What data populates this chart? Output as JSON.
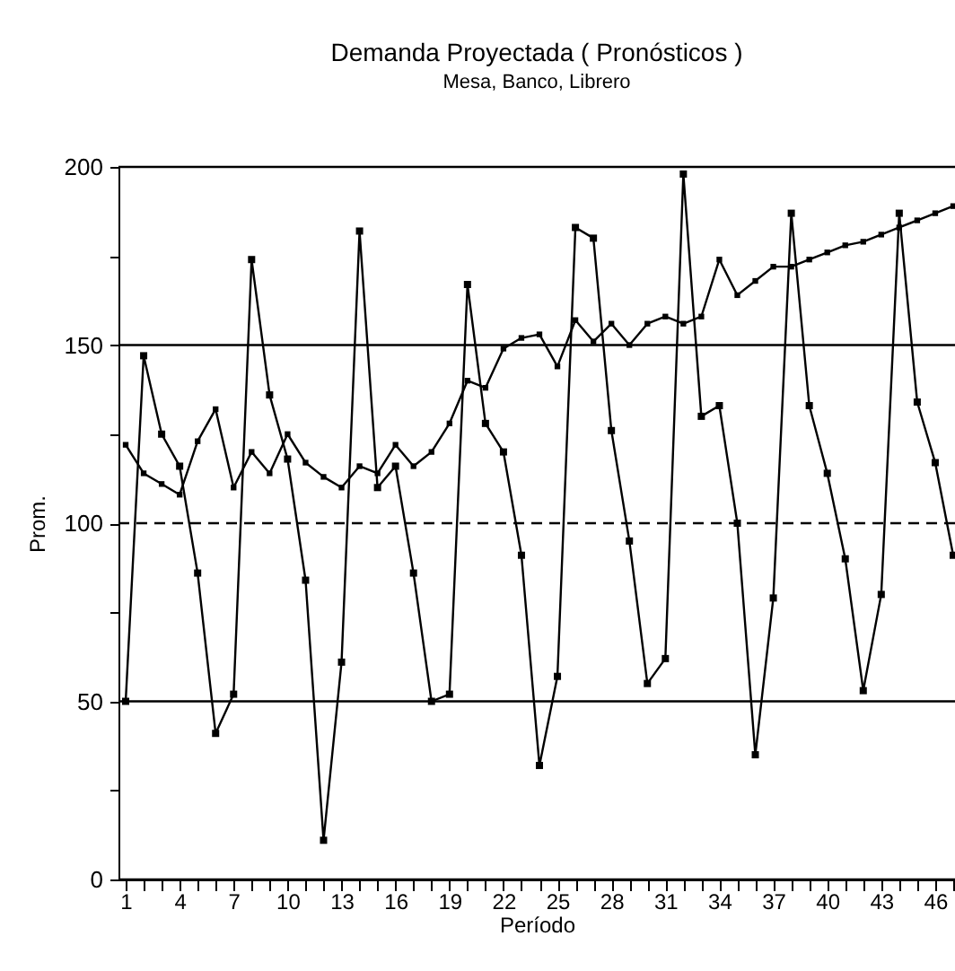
{
  "chart_data": {
    "type": "line",
    "title": "Demanda Proyectada ( Pronósticos )",
    "subtitle": "Mesa, Banco, Librero",
    "xlabel": "Período",
    "ylabel": "Prom.",
    "x": [
      1,
      2,
      3,
      4,
      5,
      6,
      7,
      8,
      9,
      10,
      11,
      12,
      13,
      14,
      15,
      16,
      17,
      18,
      19,
      20,
      21,
      22,
      23,
      24,
      25,
      26,
      27,
      28,
      29,
      30,
      31,
      32,
      33,
      34,
      35,
      36,
      37,
      38,
      39,
      40,
      41,
      42,
      43,
      44,
      45,
      46,
      47
    ],
    "series": [
      {
        "color": "#000000",
        "values": [
          50,
          147,
          125,
          116,
          86,
          41,
          52,
          174,
          136,
          118,
          84,
          11,
          61,
          182,
          110,
          116,
          86,
          50,
          52,
          167,
          128,
          120,
          91,
          32,
          57,
          183,
          180,
          126,
          95,
          55,
          62,
          198,
          130,
          133,
          100,
          35,
          79,
          187,
          133,
          114,
          90,
          53,
          80,
          187,
          134,
          117,
          91
        ]
      },
      {
        "color": "#000000",
        "values": [
          122,
          114,
          111,
          108,
          123,
          132,
          110,
          120,
          114,
          125,
          117,
          113,
          110,
          116,
          114,
          122,
          116,
          120,
          128,
          140,
          138,
          149,
          152,
          153,
          144,
          157,
          151,
          156,
          150,
          156,
          158,
          156,
          158,
          174,
          164,
          168,
          172,
          172,
          174,
          176,
          178,
          179,
          181,
          183,
          185,
          187,
          189
        ]
      }
    ],
    "xlim": [
      0.6,
      47.1
    ],
    "xticks": [
      1,
      {
        "value": 2,
        "label": null
      },
      {
        "value": 3,
        "label": null
      },
      4,
      {
        "value": 5,
        "label": null
      },
      {
        "value": 6,
        "label": null
      },
      7,
      {
        "value": 8,
        "label": null
      },
      {
        "value": 9,
        "label": null
      },
      10,
      {
        "value": 11,
        "label": null
      },
      {
        "value": 12,
        "label": null
      },
      13,
      {
        "value": 14,
        "label": null
      },
      {
        "value": 15,
        "label": null
      },
      16,
      {
        "value": 17,
        "label": null
      },
      {
        "value": 18,
        "label": null
      },
      19,
      {
        "value": 20,
        "label": null
      },
      {
        "value": 21,
        "label": null
      },
      22,
      {
        "value": 23,
        "label": null
      },
      {
        "value": 24,
        "label": null
      },
      25,
      {
        "value": 26,
        "label": null
      },
      {
        "value": 27,
        "label": null
      },
      28,
      {
        "value": 29,
        "label": null
      },
      {
        "value": 30,
        "label": null
      },
      31,
      {
        "value": 32,
        "label": null
      },
      {
        "value": 33,
        "label": null
      },
      34,
      {
        "value": 35,
        "label": null
      },
      {
        "value": 36,
        "label": null
      },
      37,
      {
        "value": 38,
        "label": null
      },
      {
        "value": 39,
        "label": null
      },
      40,
      {
        "value": 41,
        "label": null
      },
      {
        "value": 42,
        "label": null
      },
      43,
      {
        "value": 44,
        "label": null
      },
      {
        "value": 45,
        "label": null
      },
      46,
      {
        "value": 47,
        "label": null
      }
    ],
    "ylim": [
      0,
      200
    ],
    "yticks": [
      0,
      {
        "value": 25,
        "label": null
      },
      50,
      {
        "value": 75,
        "label": null
      },
      100,
      {
        "value": 125,
        "label": null
      },
      150,
      {
        "value": 175,
        "label": null
      },
      200
    ],
    "ref_lines": [
      {
        "axis": "y",
        "value": 100,
        "line_style": "dashed",
        "color": "#000000"
      }
    ],
    "grid": "y",
    "marker": "square",
    "line_style": "solid"
  }
}
